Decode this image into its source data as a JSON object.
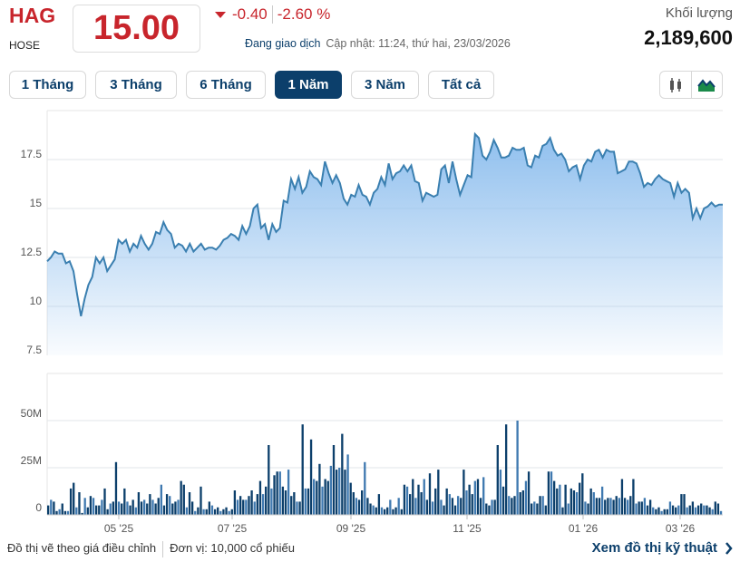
{
  "header": {
    "symbol": "HAG",
    "exchange": "HOSE",
    "price": "15.00",
    "change": "-0.40",
    "change_pct": "-2.60 %",
    "status": "Đang giao dịch",
    "updated": "Cập nhật: 11:24, thứ hai, 23/03/2026",
    "volume_label": "Khối lượng",
    "volume_value": "2,189,600"
  },
  "tabs": [
    {
      "label": "1 Tháng"
    },
    {
      "label": "3 Tháng"
    },
    {
      "label": "6 Tháng"
    },
    {
      "label": "1 Năm",
      "active": true
    },
    {
      "label": "3 Năm"
    },
    {
      "label": "Tất cả"
    }
  ],
  "tools": [
    "candlestick-icon",
    "area-chart-icon"
  ],
  "colors": {
    "accent": "#0c3f6b",
    "down": "#c8252c",
    "line": "#3a7fb0",
    "fill": "#8fbfee",
    "volume_bar": "#0c3f6b",
    "volume_bar_alt": "#3f79b0"
  },
  "footer": {
    "note": "Đồ thị vẽ theo giá điều chỉnh",
    "unit": "Đơn vị: 10,000 cổ phiếu",
    "link": "Xem đồ thị kỹ thuật"
  },
  "chart_data": [
    {
      "type": "area",
      "ylim": [
        7.5,
        20
      ],
      "yticks": [
        "17.5",
        "15",
        "12.5",
        "10",
        "7.5"
      ],
      "grid": true,
      "values": [
        12.3,
        12.5,
        12.8,
        12.7,
        12.7,
        12.2,
        12.3,
        11.8,
        10.6,
        9.5,
        10.4,
        11.1,
        11.5,
        12.5,
        12.2,
        12.5,
        11.8,
        12.1,
        12.4,
        13.4,
        13.2,
        13.4,
        12.8,
        13.2,
        13.0,
        13.6,
        13.2,
        12.9,
        13.2,
        13.8,
        13.7,
        14.3,
        13.9,
        13.7,
        13.0,
        13.2,
        13.1,
        12.8,
        13.2,
        12.8,
        13.0,
        13.2,
        12.9,
        13.0,
        13.0,
        12.9,
        13.1,
        13.4,
        13.5,
        13.7,
        13.6,
        13.4,
        14.1,
        13.7,
        14.1,
        15.0,
        15.2,
        14.0,
        14.2,
        13.4,
        14.2,
        13.8,
        14.0,
        15.4,
        15.3,
        16.5,
        16.0,
        16.6,
        15.8,
        16.1,
        16.9,
        16.6,
        16.5,
        16.2,
        17.4,
        16.8,
        16.3,
        16.7,
        16.3,
        15.5,
        15.2,
        15.7,
        15.6,
        16.2,
        15.7,
        15.6,
        15.2,
        15.8,
        16.0,
        16.6,
        16.2,
        17.3,
        16.5,
        16.8,
        16.9,
        17.2,
        16.9,
        17.2,
        16.4,
        16.3,
        15.4,
        15.8,
        15.7,
        15.6,
        15.7,
        17.0,
        17.2,
        16.3,
        17.4,
        16.5,
        15.7,
        16.2,
        16.7,
        16.6,
        18.8,
        18.6,
        17.7,
        17.5,
        17.9,
        18.5,
        18.1,
        17.6,
        17.6,
        17.7,
        18.1,
        18.0,
        18.0,
        18.1,
        17.2,
        17.1,
        17.7,
        17.6,
        18.2,
        18.3,
        18.6,
        18.0,
        17.7,
        17.8,
        17.5,
        16.9,
        17.1,
        17.2,
        16.5,
        17.2,
        17.5,
        17.4,
        17.9,
        18.0,
        17.6,
        18.0,
        17.9,
        17.9,
        16.8,
        16.9,
        17.0,
        17.4,
        17.4,
        17.3,
        16.8,
        16.1,
        16.3,
        16.2,
        16.5,
        16.7,
        16.5,
        16.4,
        16.3,
        15.6,
        16.3,
        15.8,
        16.0,
        15.8,
        14.5,
        15.0,
        14.5,
        15.0,
        15.1,
        15.3,
        15.1,
        15.2,
        15.2
      ]
    },
    {
      "type": "bar",
      "ylim": [
        0,
        75
      ],
      "yticks": [
        "50M",
        "25M",
        "0"
      ],
      "grid": true,
      "xticks": [
        "05 '25",
        "07 '25",
        "09 '25",
        "11 '25",
        "01 '26",
        "03 '26"
      ],
      "values": [
        5,
        8,
        7,
        2,
        3,
        6,
        2,
        2,
        14,
        17,
        4,
        12,
        1,
        9,
        4,
        10,
        9,
        5,
        5,
        8,
        14,
        3,
        6,
        7,
        28,
        7,
        6,
        14,
        7,
        5,
        8,
        4,
        12,
        7,
        8,
        6,
        11,
        8,
        6,
        9,
        16,
        5,
        11,
        10,
        6,
        7,
        8,
        18,
        16,
        4,
        12,
        7,
        2,
        4,
        15,
        3,
        3,
        7,
        5,
        3,
        4,
        2,
        3,
        4,
        2,
        3,
        13,
        8,
        10,
        8,
        8,
        10,
        13,
        7,
        11,
        18,
        11,
        15,
        37,
        14,
        21,
        23,
        23,
        15,
        13,
        24,
        10,
        12,
        7,
        7,
        48,
        14,
        14,
        40,
        19,
        18,
        27,
        15,
        19,
        18,
        26,
        37,
        24,
        25,
        43,
        24,
        32,
        17,
        12,
        9,
        8,
        13,
        28,
        9,
        6,
        5,
        4,
        11,
        4,
        3,
        4,
        8,
        3,
        4,
        9,
        3,
        16,
        15,
        11,
        19,
        9,
        16,
        12,
        19,
        8,
        22,
        7,
        14,
        24,
        8,
        5,
        14,
        11,
        9,
        5,
        10,
        9,
        24,
        13,
        16,
        11,
        18,
        19,
        9,
        20,
        6,
        5,
        8,
        8,
        37,
        24,
        15,
        48,
        10,
        9,
        10,
        50,
        12,
        13,
        18,
        23,
        6,
        7,
        6,
        10,
        10,
        5,
        23,
        23,
        18,
        14,
        16,
        4,
        16,
        6,
        14,
        13,
        12,
        17,
        22,
        7,
        6,
        14,
        12,
        9,
        9,
        15,
        8,
        9,
        9,
        8,
        10,
        9,
        19,
        9,
        8,
        10,
        19,
        6,
        7,
        7,
        9,
        5,
        8,
        4,
        3,
        4,
        2,
        3,
        3,
        7,
        5,
        4,
        5,
        11,
        11,
        4,
        5,
        7,
        4,
        5,
        6,
        5,
        5,
        4,
        3,
        7,
        6,
        2
      ]
    }
  ]
}
